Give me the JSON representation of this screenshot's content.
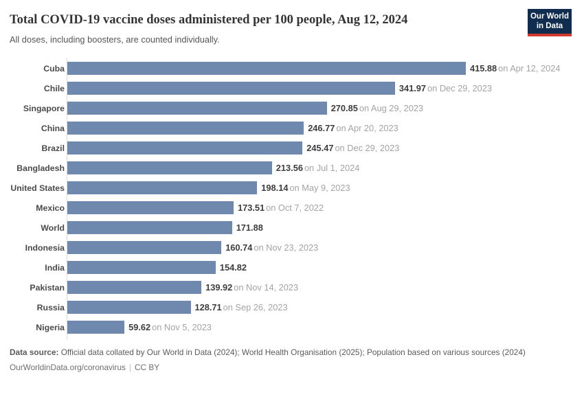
{
  "logo": {
    "line1": "Our World",
    "line2": "in Data",
    "bg_color": "#102d50",
    "accent_color": "#d2392c"
  },
  "chart_data": {
    "type": "bar",
    "orientation": "horizontal",
    "title": "Total COVID-19 vaccine doses administered per 100 people, Aug 12, 2024",
    "subtitle": "All doses, including boosters, are counted individually.",
    "xlim": [
      0,
      415.88
    ],
    "grid": false,
    "legend": "none",
    "bar_color": "#6e88ae",
    "axis_line_color": "#dcdcdc",
    "categories": [
      "Cuba",
      "Chile",
      "Singapore",
      "China",
      "Brazil",
      "Bangladesh",
      "United States",
      "Mexico",
      "World",
      "Indonesia",
      "India",
      "Pakistan",
      "Russia",
      "Nigeria"
    ],
    "values": [
      415.88,
      341.97,
      270.85,
      246.77,
      245.47,
      213.56,
      198.14,
      173.51,
      171.88,
      160.74,
      154.82,
      139.92,
      128.71,
      59.62
    ],
    "rows": [
      {
        "entity": "Cuba",
        "value": 415.88,
        "value_label": "415.88",
        "date_label": "on Apr 12, 2024"
      },
      {
        "entity": "Chile",
        "value": 341.97,
        "value_label": "341.97",
        "date_label": "on Dec 29, 2023"
      },
      {
        "entity": "Singapore",
        "value": 270.85,
        "value_label": "270.85",
        "date_label": "on Aug 29, 2023"
      },
      {
        "entity": "China",
        "value": 246.77,
        "value_label": "246.77",
        "date_label": "on Apr 20, 2023"
      },
      {
        "entity": "Brazil",
        "value": 245.47,
        "value_label": "245.47",
        "date_label": "on Dec 29, 2023"
      },
      {
        "entity": "Bangladesh",
        "value": 213.56,
        "value_label": "213.56",
        "date_label": "on Jul 1, 2024"
      },
      {
        "entity": "United States",
        "value": 198.14,
        "value_label": "198.14",
        "date_label": "on May 9, 2023"
      },
      {
        "entity": "Mexico",
        "value": 173.51,
        "value_label": "173.51",
        "date_label": "on Oct 7, 2022"
      },
      {
        "entity": "World",
        "value": 171.88,
        "value_label": "171.88",
        "date_label": ""
      },
      {
        "entity": "Indonesia",
        "value": 160.74,
        "value_label": "160.74",
        "date_label": "on Nov 23, 2023"
      },
      {
        "entity": "India",
        "value": 154.82,
        "value_label": "154.82",
        "date_label": ""
      },
      {
        "entity": "Pakistan",
        "value": 139.92,
        "value_label": "139.92",
        "date_label": "on Nov 14, 2023"
      },
      {
        "entity": "Russia",
        "value": 128.71,
        "value_label": "128.71",
        "date_label": "on Sep 26, 2023"
      },
      {
        "entity": "Nigeria",
        "value": 59.62,
        "value_label": "59.62",
        "date_label": "on Nov 5, 2023"
      }
    ]
  },
  "footer": {
    "source_label": "Data source:",
    "source_text": " Official data collated by Our World in Data (2024); World Health Organisation (2025); Population based on various sources (2024)",
    "link": "OurWorldinData.org/coronavirus",
    "separator": "|",
    "license": "CC BY"
  }
}
